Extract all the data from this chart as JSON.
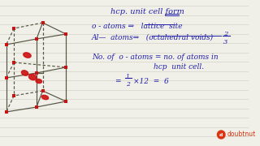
{
  "bg_color": "#f0efe8",
  "title": "hcp. unit cell form",
  "line1": "o - atoms ⇒   lattice  site",
  "line2_prefix": "Al—  atoms⇒   (octahedral voids)",
  "line3a": "No. of  o - atoms = no. of atoms in",
  "line3b": "hcp  unit cell.",
  "text_color": "#2020aa",
  "red_color": "#cc1111",
  "node_color": "#cc1111",
  "line_color": "#555544",
  "notebook_line_color": "#c8c8b8"
}
